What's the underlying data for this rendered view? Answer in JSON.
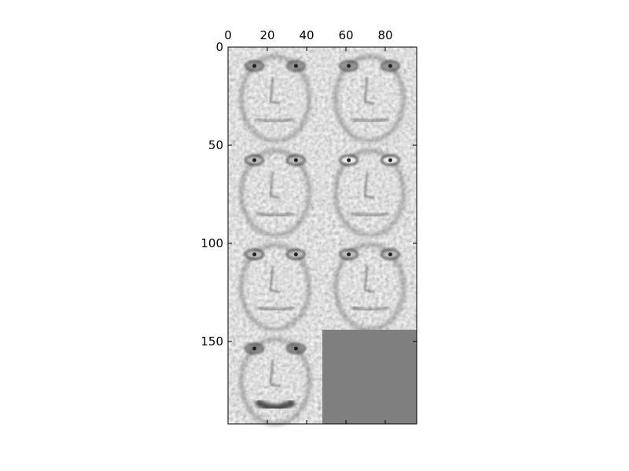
{
  "chart_data": {
    "type": "heatmap",
    "title": "",
    "xlabel": "",
    "ylabel": "",
    "xlim": [
      0,
      96
    ],
    "ylim": [
      192,
      0
    ],
    "x_ticks": [
      0,
      20,
      40,
      60,
      80
    ],
    "y_ticks": [
      0,
      50,
      100,
      150
    ],
    "x_tick_labels": [
      "0",
      "20",
      "40",
      "60",
      "80"
    ],
    "y_tick_labels": [
      "0",
      "50",
      "100",
      "150"
    ],
    "x_axis_position": "top",
    "grid": false,
    "colormap": "gray",
    "tile_layout": {
      "rows": 4,
      "cols": 2
    },
    "tiles": [
      {
        "row": 0,
        "col": 0,
        "content": "face-component",
        "feature": "eyes-dark"
      },
      {
        "row": 0,
        "col": 1,
        "content": "face-component",
        "feature": "eyes-dark"
      },
      {
        "row": 1,
        "col": 0,
        "content": "face-component",
        "feature": "eyes-bright"
      },
      {
        "row": 1,
        "col": 1,
        "content": "face-component",
        "feature": "eyes-very-bright"
      },
      {
        "row": 2,
        "col": 0,
        "content": "face-component",
        "feature": "eyes-bright"
      },
      {
        "row": 2,
        "col": 1,
        "content": "face-component",
        "feature": "eyes-bright"
      },
      {
        "row": 3,
        "col": 0,
        "content": "face-component",
        "feature": "mouth-dark"
      },
      {
        "row": 3,
        "col": 1,
        "content": "empty"
      }
    ],
    "empty_fill_color": "#7f7f7f"
  }
}
